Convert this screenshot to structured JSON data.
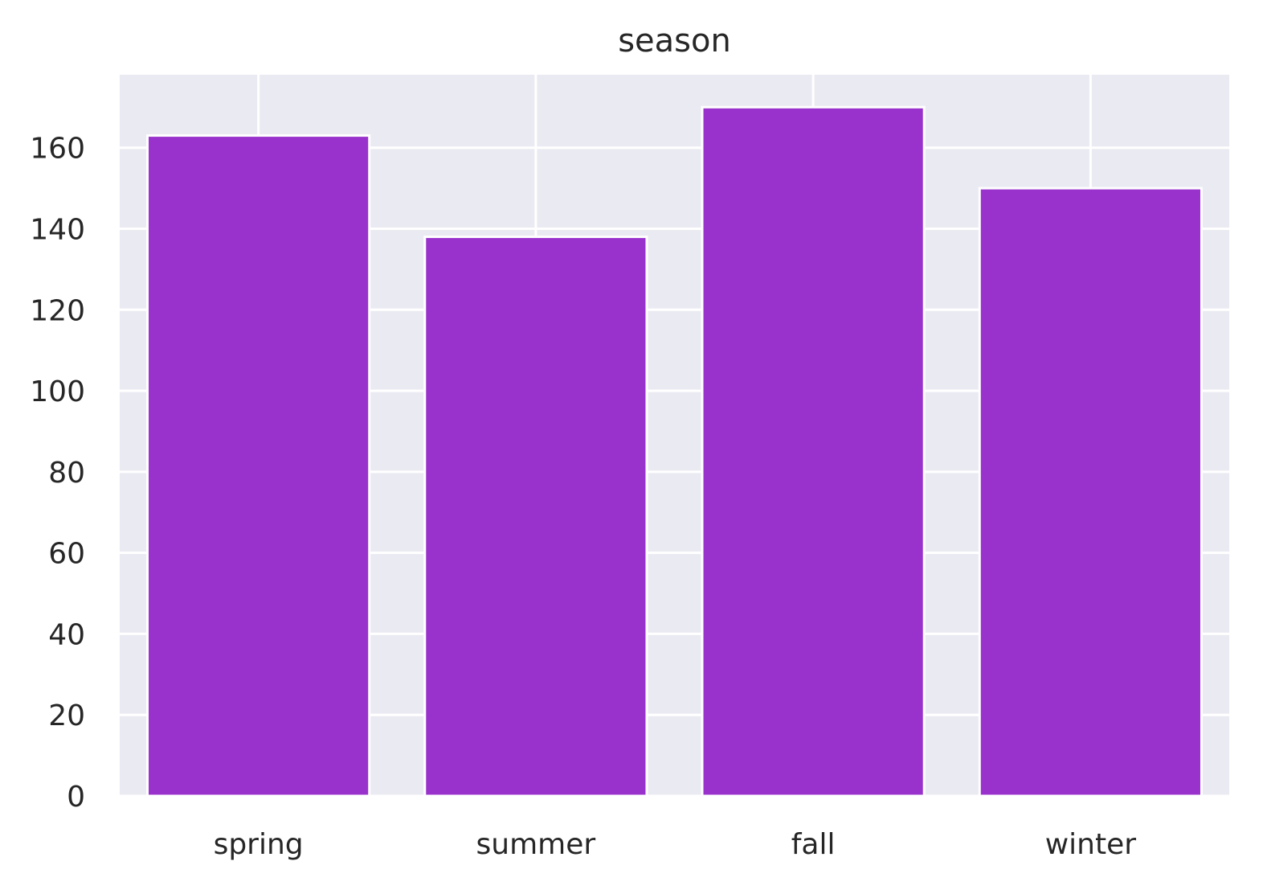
{
  "chart_data": {
    "type": "bar",
    "title": "season",
    "xlabel": "",
    "ylabel": "",
    "categories": [
      "spring",
      "summer",
      "fall",
      "winter"
    ],
    "values": [
      163,
      138,
      170,
      150
    ],
    "ylim": [
      0,
      178
    ],
    "yticks": [
      0,
      20,
      40,
      60,
      80,
      100,
      120,
      140,
      160
    ],
    "grid": true,
    "legend": "none",
    "colors": {
      "bar": "#9932cc",
      "plot_background": "#eaeaf2",
      "grid": "#ffffff",
      "text": "#262626"
    }
  }
}
